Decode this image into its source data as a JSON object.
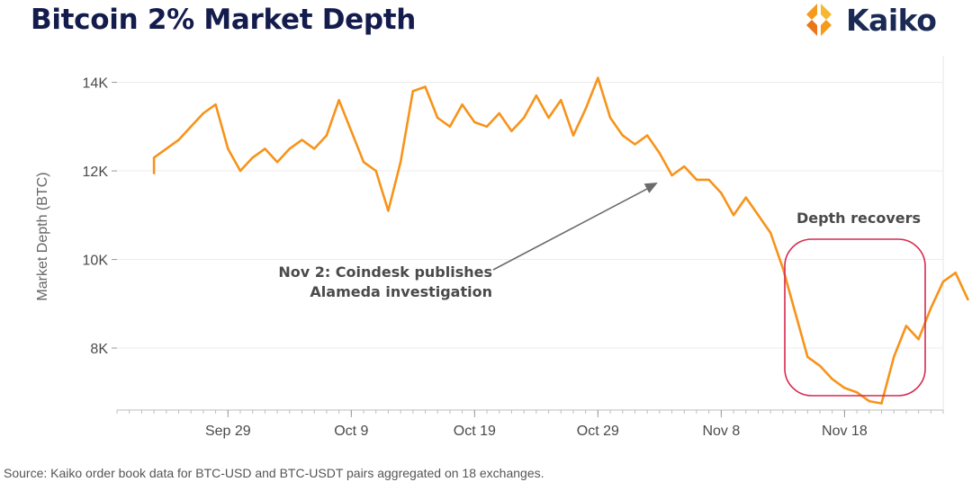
{
  "header": {
    "title": "Bitcoin 2% Market Depth",
    "brand": "Kaiko"
  },
  "source": "Source: Kaiko order book data for BTC-USD and BTC-USDT pairs aggregated on 18 exchanges.",
  "colors": {
    "line": "#f7931a",
    "highlight": "#d6294f",
    "arrow": "#6b6b6b",
    "logo_orange": "#f59a1b",
    "title": "#141c4d"
  },
  "chart_data": {
    "type": "line",
    "title": "Bitcoin 2% Market Depth",
    "ylabel": "Market Depth (BTC)",
    "xlabel": "",
    "ylim": [
      6600,
      14600
    ],
    "yticks": [
      {
        "value": 8000,
        "label": "8K"
      },
      {
        "value": 10000,
        "label": "10K"
      },
      {
        "value": 12000,
        "label": "12K"
      },
      {
        "value": 14000,
        "label": "14K"
      }
    ],
    "xlim": [
      "2022-09-20",
      "2022-11-26"
    ],
    "xticks": [
      {
        "value": "2022-09-29",
        "label": "Sep 29"
      },
      {
        "value": "2022-10-09",
        "label": "Oct 9"
      },
      {
        "value": "2022-10-19",
        "label": "Oct 19"
      },
      {
        "value": "2022-10-29",
        "label": "Oct 29"
      },
      {
        "value": "2022-11-08",
        "label": "Nov 8"
      },
      {
        "value": "2022-11-18",
        "label": "Nov 18"
      }
    ],
    "grid": true,
    "series": [
      {
        "points": [
          [
            "2022-09-23",
            11950
          ],
          [
            "2022-09-23",
            12300
          ],
          [
            "2022-09-24",
            12500
          ],
          [
            "2022-09-25",
            12700
          ],
          [
            "2022-09-26",
            13000
          ],
          [
            "2022-09-27",
            13300
          ],
          [
            "2022-09-28",
            13500
          ],
          [
            "2022-09-29",
            12500
          ],
          [
            "2022-09-30",
            12000
          ],
          [
            "2022-10-01",
            12300
          ],
          [
            "2022-10-02",
            12500
          ],
          [
            "2022-10-03",
            12200
          ],
          [
            "2022-10-04",
            12500
          ],
          [
            "2022-10-05",
            12700
          ],
          [
            "2022-10-06",
            12500
          ],
          [
            "2022-10-07",
            12800
          ],
          [
            "2022-10-08",
            13600
          ],
          [
            "2022-10-09",
            12900
          ],
          [
            "2022-10-10",
            12200
          ],
          [
            "2022-10-11",
            12000
          ],
          [
            "2022-10-12",
            11100
          ],
          [
            "2022-10-13",
            12200
          ],
          [
            "2022-10-14",
            13800
          ],
          [
            "2022-10-15",
            13900
          ],
          [
            "2022-10-16",
            13200
          ],
          [
            "2022-10-17",
            13000
          ],
          [
            "2022-10-18",
            13500
          ],
          [
            "2022-10-19",
            13100
          ],
          [
            "2022-10-20",
            13000
          ],
          [
            "2022-10-21",
            13300
          ],
          [
            "2022-10-22",
            12900
          ],
          [
            "2022-10-23",
            13200
          ],
          [
            "2022-10-24",
            13700
          ],
          [
            "2022-10-25",
            13200
          ],
          [
            "2022-10-26",
            13600
          ],
          [
            "2022-10-27",
            12800
          ],
          [
            "2022-10-28",
            13400
          ],
          [
            "2022-10-29",
            14100
          ],
          [
            "2022-10-30",
            13200
          ],
          [
            "2022-10-31",
            12800
          ],
          [
            "2022-11-01",
            12600
          ],
          [
            "2022-11-02",
            12800
          ],
          [
            "2022-11-03",
            12400
          ],
          [
            "2022-11-04",
            11900
          ],
          [
            "2022-11-05",
            12100
          ],
          [
            "2022-11-06",
            11800
          ],
          [
            "2022-11-07",
            11800
          ],
          [
            "2022-11-08",
            11500
          ],
          [
            "2022-11-09",
            11000
          ],
          [
            "2022-11-10",
            11400
          ],
          [
            "2022-11-11",
            11000
          ],
          [
            "2022-11-12",
            10600
          ],
          [
            "2022-11-13",
            9800
          ],
          [
            "2022-11-14",
            8800
          ],
          [
            "2022-11-15",
            7800
          ],
          [
            "2022-11-16",
            7600
          ],
          [
            "2022-11-17",
            7300
          ],
          [
            "2022-11-18",
            7100
          ],
          [
            "2022-11-19",
            7000
          ],
          [
            "2022-11-20",
            6800
          ],
          [
            "2022-11-21",
            6750
          ],
          [
            "2022-11-22",
            7800
          ],
          [
            "2022-11-23",
            8500
          ],
          [
            "2022-11-24",
            8200
          ],
          [
            "2022-11-25",
            8900
          ],
          [
            "2022-11-26",
            9500
          ],
          [
            "2022-11-27",
            9700
          ],
          [
            "2022-11-28",
            9100
          ]
        ]
      }
    ],
    "annotations": [
      {
        "text_lines": [
          "Nov 2: Coindesk publishes",
          "Alameda investigation"
        ],
        "arrow_to": [
          "2022-11-03",
          11900
        ]
      },
      {
        "text": "Depth recovers",
        "region": {
          "x_from": "2022-11-15",
          "x_to": "2022-11-30",
          "y_from": 6650,
          "y_to": 10300
        }
      }
    ]
  }
}
